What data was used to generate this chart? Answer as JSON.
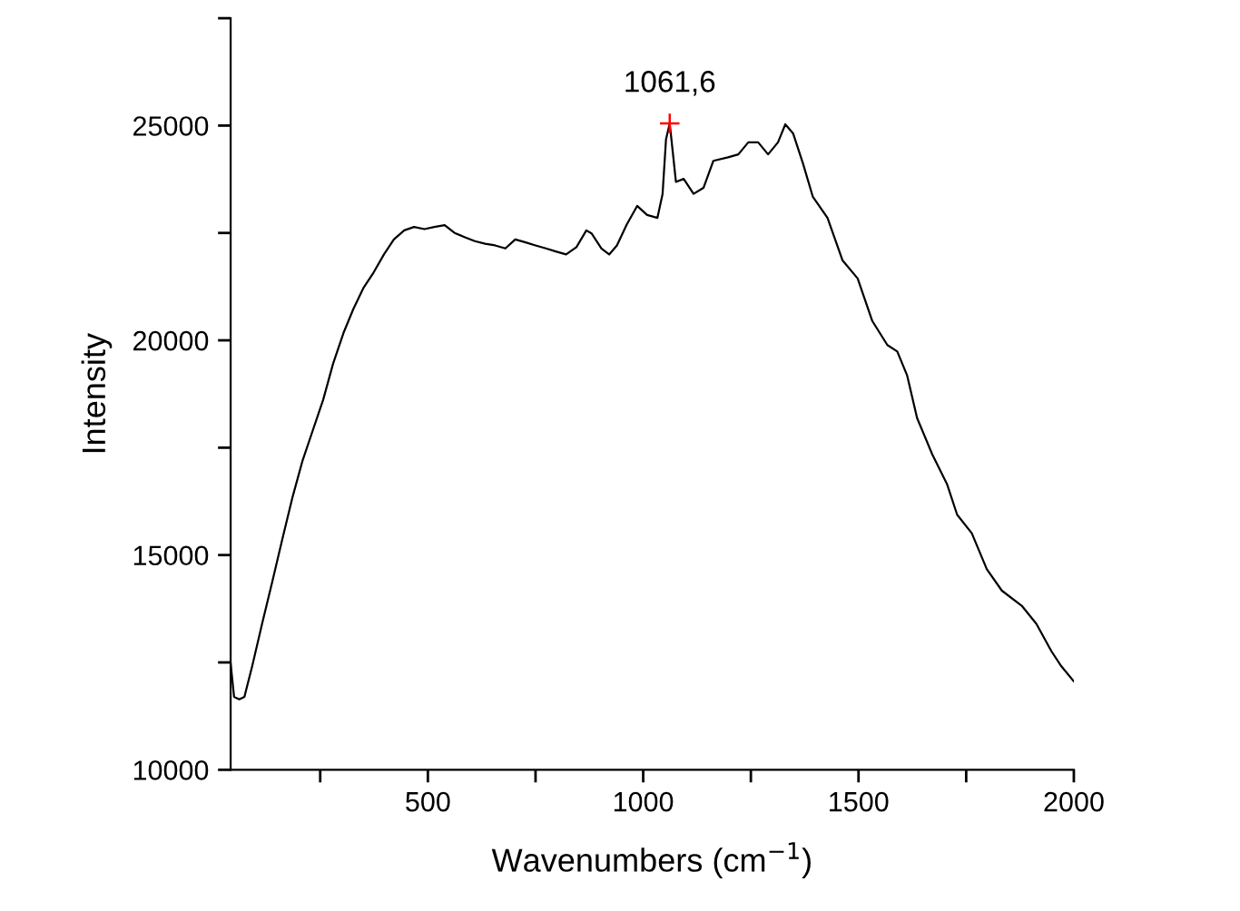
{
  "chart_data": {
    "type": "line",
    "xlabel": "Wavenumbers (cm$^{−1}$)",
    "ylabel": "Intensity",
    "xlim": [
      42,
      2000
    ],
    "ylim": [
      10000,
      27500
    ],
    "xticks": [
      {
        "value": 250,
        "label": null
      },
      500,
      {
        "value": 750,
        "label": null
      },
      1000,
      {
        "value": 1250,
        "label": null
      },
      1500,
      {
        "value": 1750,
        "label": null
      },
      2000
    ],
    "yticks": [
      10000,
      {
        "value": 12500,
        "label": null
      },
      15000,
      {
        "value": 17500,
        "label": null
      },
      20000,
      {
        "value": 22500,
        "label": null
      },
      25000,
      {
        "value": 27500,
        "label": null
      }
    ],
    "grid": false,
    "legend": false,
    "series": [
      {
        "color": "#000000",
        "marker": "none",
        "line_style": "solid",
        "x": [
          42,
          50,
          62,
          74,
          92,
          115,
          139,
          162,
          186,
          209,
          233,
          257,
          280,
          304,
          327,
          351,
          374,
          398,
          421,
          445,
          468,
          492,
          515,
          539,
          562,
          586,
          609,
          633,
          656,
          680,
          703,
          727,
          750,
          774,
          797,
          821,
          845,
          868,
          880,
          903,
          921,
          939,
          962,
          986,
          1009,
          1033,
          1045,
          1053,
          1061.6,
          1070,
          1076,
          1094,
          1117,
          1140,
          1163,
          1197,
          1221,
          1244,
          1267,
          1290,
          1313,
          1330,
          1348,
          1371,
          1394,
          1428,
          1463,
          1498,
          1532,
          1567,
          1590,
          1613,
          1636,
          1671,
          1706,
          1729,
          1763,
          1798,
          1833,
          1879,
          1913,
          1948,
          1971,
          2000
        ],
        "values": [
          12480,
          11700,
          11640,
          11700,
          12410,
          13400,
          14390,
          15370,
          16360,
          17200,
          17910,
          18620,
          19460,
          20170,
          20730,
          21230,
          21580,
          22000,
          22350,
          22560,
          22640,
          22590,
          22640,
          22680,
          22500,
          22400,
          22310,
          22250,
          22210,
          22140,
          22350,
          22280,
          22210,
          22140,
          22070,
          22000,
          22170,
          22560,
          22490,
          22140,
          22000,
          22210,
          22700,
          23130,
          22920,
          22850,
          23410,
          24680,
          25050,
          24260,
          23690,
          23760,
          23410,
          23550,
          24180,
          24260,
          24330,
          24610,
          24610,
          24330,
          24610,
          25030,
          24820,
          24120,
          23340,
          22850,
          21860,
          21440,
          20450,
          19890,
          19740,
          19180,
          18190,
          17350,
          16640,
          15940,
          15510,
          14670,
          14170,
          13820,
          13400,
          12760,
          12410,
          12060
        ]
      },
      {
        "type": "scatter",
        "color": "#ff0000",
        "marker": "cross",
        "x": [
          1061.6
        ],
        "values": [
          25050
        ]
      }
    ],
    "annotations": [
      {
        "text": "1061,6",
        "x": 1061.6,
        "y": 25050
      }
    ]
  }
}
